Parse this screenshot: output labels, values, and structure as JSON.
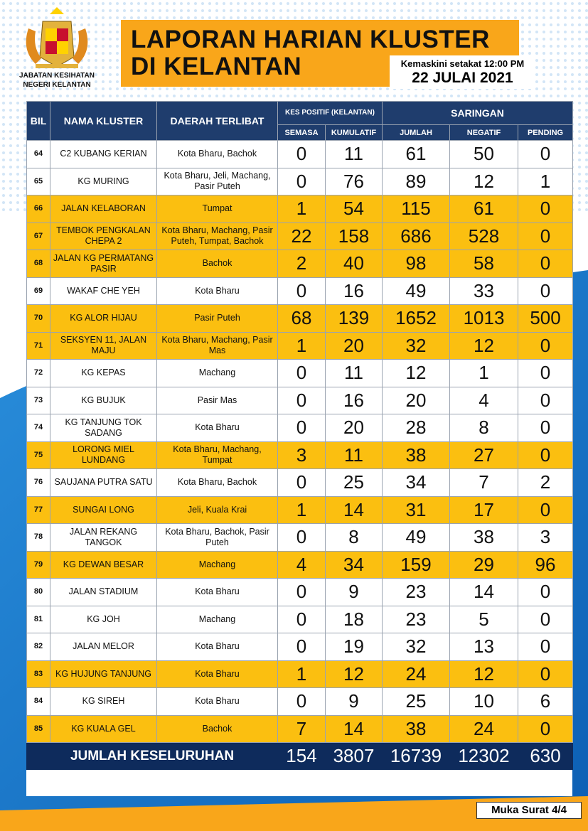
{
  "header": {
    "org": "JABATAN KESIHATAN NEGERI KELANTAN",
    "title_line1": "LAPORAN HARIAN KLUSTER",
    "title_line2": "DI KELANTAN",
    "updated": "Kemaskini setakat 12:00 PM",
    "date": "22 JULAI 2021"
  },
  "table": {
    "columns": {
      "bil": "BIL",
      "name": "NAMA KLUSTER",
      "daerah": "DAERAH TERLIBAT",
      "group1": "KES POSITIF (KELANTAN)",
      "group2": "SARINGAN",
      "sub": [
        "SEMASA",
        "KUMULATIF",
        "JUMLAH",
        "NEGATIF",
        "PENDING"
      ]
    },
    "rows": [
      {
        "bil": "64",
        "name": "C2 KUBANG KERIAN",
        "daerah": "Kota Bharu, Bachok",
        "values": [
          0,
          11,
          61,
          50,
          0
        ],
        "highlight": false
      },
      {
        "bil": "65",
        "name": "KG MURING",
        "daerah": "Kota Bharu, Jeli, Machang, Pasir Puteh",
        "values": [
          0,
          76,
          89,
          12,
          1
        ],
        "highlight": false
      },
      {
        "bil": "66",
        "name": "JALAN KELABORAN",
        "daerah": "Tumpat",
        "values": [
          1,
          54,
          115,
          61,
          0
        ],
        "highlight": true
      },
      {
        "bil": "67",
        "name": "TEMBOK PENGKALAN CHEPA 2",
        "daerah": "Kota Bharu, Machang, Pasir Puteh, Tumpat, Bachok",
        "values": [
          22,
          158,
          686,
          528,
          0
        ],
        "highlight": true
      },
      {
        "bil": "68",
        "name": "JALAN KG PERMATANG PASIR",
        "daerah": "Bachok",
        "values": [
          2,
          40,
          98,
          58,
          0
        ],
        "highlight": true
      },
      {
        "bil": "69",
        "name": "WAKAF CHE YEH",
        "daerah": "Kota Bharu",
        "values": [
          0,
          16,
          49,
          33,
          0
        ],
        "highlight": false
      },
      {
        "bil": "70",
        "name": "KG ALOR HIJAU",
        "daerah": "Pasir Puteh",
        "values": [
          68,
          139,
          1652,
          1013,
          500
        ],
        "highlight": true
      },
      {
        "bil": "71",
        "name": "SEKSYEN 11, JALAN MAJU",
        "daerah": "Kota Bharu, Machang, Pasir Mas",
        "values": [
          1,
          20,
          32,
          12,
          0
        ],
        "highlight": true
      },
      {
        "bil": "72",
        "name": "KG KEPAS",
        "daerah": "Machang",
        "values": [
          0,
          11,
          12,
          1,
          0
        ],
        "highlight": false
      },
      {
        "bil": "73",
        "name": "KG BUJUK",
        "daerah": "Pasir Mas",
        "values": [
          0,
          16,
          20,
          4,
          0
        ],
        "highlight": false
      },
      {
        "bil": "74",
        "name": "KG TANJUNG TOK SADANG",
        "daerah": "Kota Bharu",
        "values": [
          0,
          20,
          28,
          8,
          0
        ],
        "highlight": false
      },
      {
        "bil": "75",
        "name": "LORONG MIEL LUNDANG",
        "daerah": "Kota Bharu, Machang, Tumpat",
        "values": [
          3,
          11,
          38,
          27,
          0
        ],
        "highlight": true
      },
      {
        "bil": "76",
        "name": "SAUJANA PUTRA SATU",
        "daerah": "Kota Bharu, Bachok",
        "values": [
          0,
          25,
          34,
          7,
          2
        ],
        "highlight": false
      },
      {
        "bil": "77",
        "name": "SUNGAI LONG",
        "daerah": "Jeli, Kuala Krai",
        "values": [
          1,
          14,
          31,
          17,
          0
        ],
        "highlight": true
      },
      {
        "bil": "78",
        "name": "JALAN REKANG TANGOK",
        "daerah": "Kota Bharu, Bachok, Pasir Puteh",
        "values": [
          0,
          8,
          49,
          38,
          3
        ],
        "highlight": false
      },
      {
        "bil": "79",
        "name": "KG DEWAN BESAR",
        "daerah": "Machang",
        "values": [
          4,
          34,
          159,
          29,
          96
        ],
        "highlight": true
      },
      {
        "bil": "80",
        "name": "JALAN STADIUM",
        "daerah": "Kota Bharu",
        "values": [
          0,
          9,
          23,
          14,
          0
        ],
        "highlight": false
      },
      {
        "bil": "81",
        "name": "KG JOH",
        "daerah": "Machang",
        "values": [
          0,
          18,
          23,
          5,
          0
        ],
        "highlight": false
      },
      {
        "bil": "82",
        "name": "JALAN MELOR",
        "daerah": "Kota Bharu",
        "values": [
          0,
          19,
          32,
          13,
          0
        ],
        "highlight": false
      },
      {
        "bil": "83",
        "name": "KG HUJUNG TANJUNG",
        "daerah": "Kota Bharu",
        "values": [
          1,
          12,
          24,
          12,
          0
        ],
        "highlight": true
      },
      {
        "bil": "84",
        "name": "KG SIREH",
        "daerah": "Kota Bharu",
        "values": [
          0,
          9,
          25,
          10,
          6
        ],
        "highlight": false
      },
      {
        "bil": "85",
        "name": "KG KUALA GEL",
        "daerah": "Bachok",
        "values": [
          7,
          14,
          38,
          24,
          0
        ],
        "highlight": true
      }
    ],
    "total": {
      "label": "JUMLAH KESELURUHAN",
      "values": [
        154,
        3807,
        16739,
        12302,
        630
      ]
    }
  },
  "footer": {
    "page": "Muka Surat 4/4"
  }
}
